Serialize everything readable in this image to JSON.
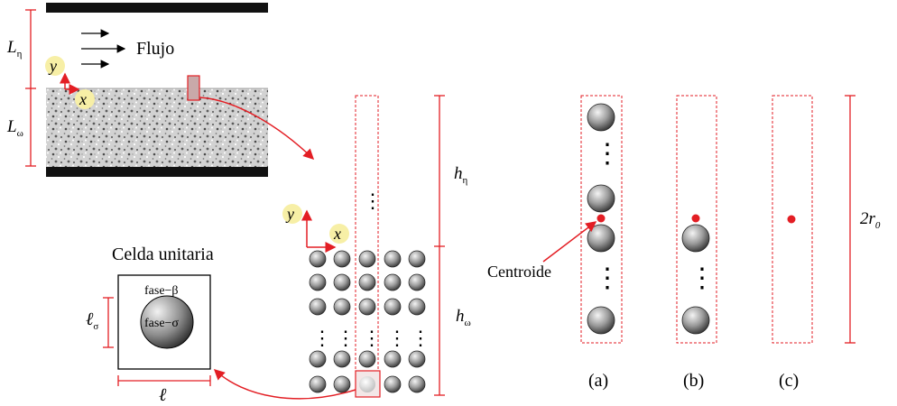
{
  "flow": {
    "label_L_eta": "L",
    "sub_eta": "η",
    "label_L_omega": "L",
    "sub_omega": "ω",
    "axis_y": "y",
    "axis_x": "x",
    "flow_label": "Flujo"
  },
  "column": {
    "axis_y": "y",
    "axis_x": "x",
    "label_h_eta": "h",
    "sub_eta": "η",
    "label_h_omega": "h",
    "sub_omega": "ω",
    "ellipsis": "⋮"
  },
  "unit_cell": {
    "title": "Celda unitaria",
    "phase_beta": "fase−β",
    "phase_sigma": "fase−σ",
    "ell_sigma": "ℓ",
    "ell_sigma_sub": "σ",
    "ell": "ℓ"
  },
  "cases": {
    "centroid_label": "Centroide",
    "label_a": "(a)",
    "label_b": "(b)",
    "label_c": "(c)",
    "height_label": "2r",
    "height_sub": "0"
  },
  "colors": {
    "red": "#e31e24",
    "dashed_red": "#e31e24",
    "highlight_yellow": "#f7efa6",
    "black_band": "#111111"
  }
}
